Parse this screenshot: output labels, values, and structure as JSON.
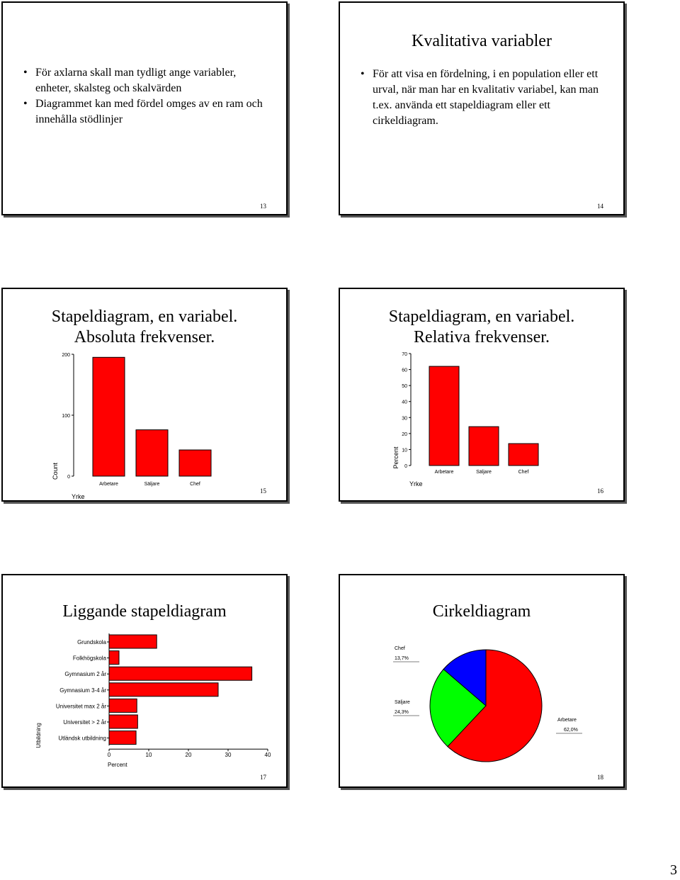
{
  "slide13": {
    "bullets": [
      "För axlarna skall man tydligt ange variabler, enheter, skalsteg och skalvärden",
      "Diagrammet kan med fördel omges av en ram och innehålla stödlinjer"
    ],
    "number": "13"
  },
  "slide14": {
    "title": "Kvalitativa variabler",
    "bullets": [
      "För att visa en fördelning, i en population eller ett urval, när man har en kvalitativ variabel, kan man t.ex. använda ett stapeldiagram eller ett cirkeldiagram."
    ],
    "number": "14"
  },
  "slide15": {
    "title_line1": "Stapeldiagram, en variabel.",
    "title_line2": "Absoluta frekvenser.",
    "number": "15"
  },
  "slide16": {
    "title_line1": "Stapeldiagram, en variabel.",
    "title_line2": "Relativa frekvenser.",
    "number": "16"
  },
  "slide17": {
    "title": "Liggande stapeldiagram",
    "number": "17"
  },
  "slide18": {
    "title": "Cirkeldiagram",
    "number": "18"
  },
  "page_number": "3",
  "chart_data": [
    {
      "id": "abs",
      "type": "bar",
      "categories": [
        "Arbetare",
        "Säljare",
        "Chef"
      ],
      "values": [
        195,
        76,
        43
      ],
      "xlabel": "Yrke",
      "ylabel": "Count",
      "ylim": [
        0,
        200
      ],
      "yticks": [
        0,
        100,
        200
      ],
      "color": "#ff0000"
    },
    {
      "id": "rel",
      "type": "bar",
      "categories": [
        "Arbetare",
        "Säljare",
        "Chef"
      ],
      "values": [
        62.0,
        24.3,
        13.7
      ],
      "xlabel": "Yrke",
      "ylabel": "Percent",
      "ylim": [
        0,
        70
      ],
      "yticks": [
        0,
        10,
        20,
        30,
        40,
        50,
        60,
        70
      ],
      "color": "#ff0000"
    },
    {
      "id": "hbar",
      "type": "bar",
      "orientation": "horizontal",
      "categories": [
        "Grundskola",
        "Folkhögskola",
        "Gymnasium 2 år",
        "Gymnasium 3-4 år",
        "Universitet max 2 år",
        "Universitet > 2 år",
        "Utländsk utbildning"
      ],
      "values": [
        12,
        2.5,
        36,
        27.5,
        7,
        7.2,
        6.8
      ],
      "xlabel": "Percent",
      "ylabel": "Utbildning",
      "xlim": [
        0,
        40
      ],
      "xticks": [
        0,
        10,
        20,
        30,
        40
      ],
      "color": "#ff0000"
    },
    {
      "id": "pie",
      "type": "pie",
      "labels": [
        "Arbetare",
        "Säljare",
        "Chef"
      ],
      "values": [
        62.0,
        24.3,
        13.7
      ],
      "value_labels": [
        "62,0%",
        "24,3%",
        "13,7%"
      ],
      "colors": [
        "#ff0000",
        "#00ff00",
        "#0000ff"
      ]
    }
  ]
}
